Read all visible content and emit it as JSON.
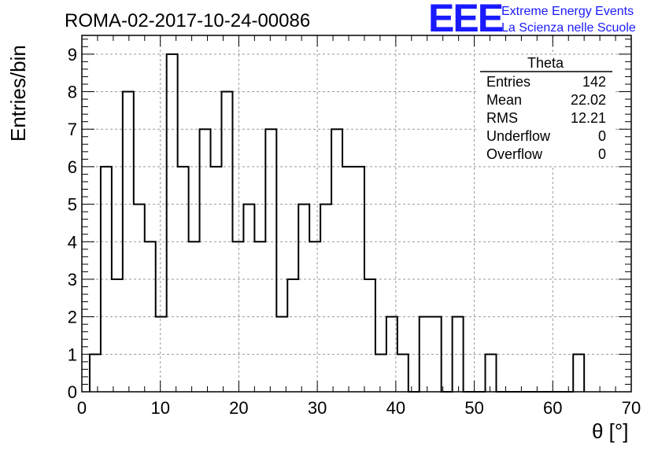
{
  "header": {
    "title": "ROMA-02-2017-10-24-00086",
    "logo_text": "EEE",
    "logo_line1": "Extreme Energy Events",
    "logo_line2": "La Scienza nelle Scuole",
    "logo_color": "#1a1aff"
  },
  "stats_box": {
    "title": "Theta",
    "rows": [
      {
        "label": "Entries",
        "value": "142"
      },
      {
        "label": "Mean",
        "value": "22.02"
      },
      {
        "label": "RMS",
        "value": "12.21"
      },
      {
        "label": "Underflow",
        "value": "0"
      },
      {
        "label": "Overflow",
        "value": "0"
      }
    ]
  },
  "chart_data": {
    "type": "bar",
    "histogram": true,
    "xlabel": "θ [°]",
    "ylabel": "Entries/bin",
    "xlim": [
      0,
      70
    ],
    "ylim": [
      0,
      9.5
    ],
    "bin_width": 1.4,
    "bin_start": 1.0,
    "values": [
      1,
      6,
      3,
      8,
      5,
      4,
      2,
      9,
      6,
      4,
      7,
      6,
      8,
      4,
      5,
      4,
      7,
      2,
      3,
      5,
      4,
      5,
      7,
      6,
      6,
      3,
      1,
      2,
      1,
      0,
      2,
      2,
      0,
      2,
      0,
      0,
      1,
      0,
      0,
      0,
      0,
      0,
      0,
      0,
      1
    ],
    "xticks": [
      0,
      10,
      20,
      30,
      40,
      50,
      60,
      70
    ],
    "yticks": [
      0,
      1,
      2,
      3,
      4,
      5,
      6,
      7,
      8,
      9
    ],
    "grid": true
  }
}
